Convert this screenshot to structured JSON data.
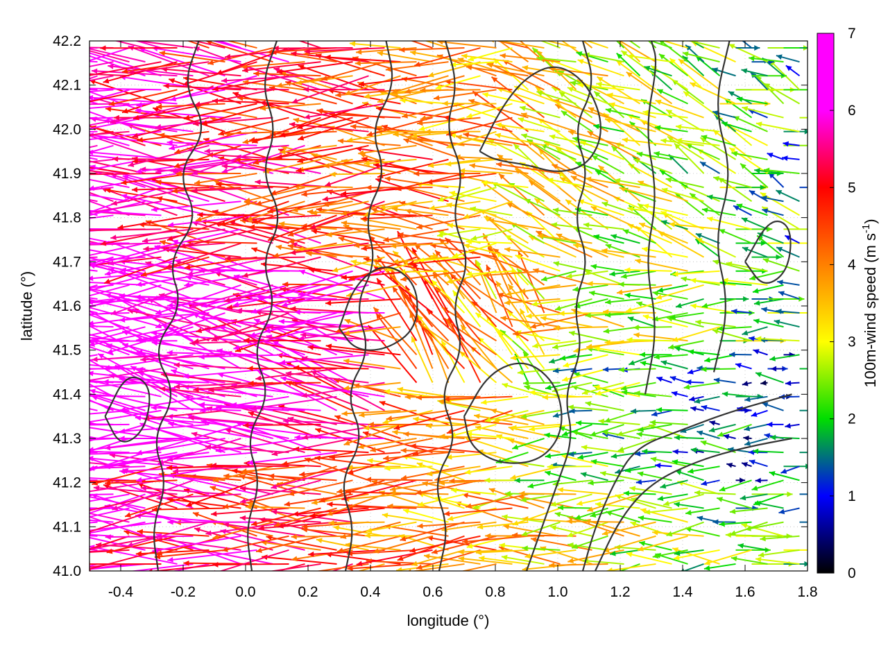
{
  "chart_data": {
    "type": "vector-field",
    "xlabel": "longitude (°)",
    "ylabel": "latitude (°)",
    "xlim": [
      -0.5,
      1.8
    ],
    "ylim": [
      41.0,
      42.2
    ],
    "xticks": [
      -0.4,
      -0.2,
      0.0,
      0.2,
      0.4,
      0.6,
      0.8,
      1.0,
      1.2,
      1.4,
      1.6,
      1.8
    ],
    "xtick_labels": [
      "-0.4",
      "-0.2",
      "0.0",
      "0.2",
      "0.4",
      "0.6",
      "0.8",
      "1.0",
      "1.2",
      "1.4",
      "1.6",
      "1.8"
    ],
    "yticks": [
      41.0,
      41.1,
      41.2,
      41.3,
      41.4,
      41.5,
      41.6,
      41.7,
      41.8,
      41.9,
      42.0,
      42.1,
      42.2
    ],
    "ytick_labels": [
      "41.0",
      "41.1",
      "41.2",
      "41.3",
      "41.4",
      "41.5",
      "41.6",
      "41.7",
      "41.8",
      "41.9",
      "42.0",
      "42.1",
      "42.2"
    ],
    "grid": true,
    "colorbar": {
      "label_main": "100m-wind speed (m s",
      "label_sup": "-1",
      "label_end": ")",
      "range": [
        0,
        7
      ],
      "ticks": [
        0,
        1,
        2,
        3,
        4,
        5,
        6,
        7
      ],
      "tick_labels": [
        "0",
        "1",
        "2",
        "3",
        "4",
        "5",
        "6",
        "7"
      ],
      "colors": [
        "#000000",
        "#0000ff",
        "#00dd00",
        "#ffff00",
        "#ff8000",
        "#ff0000",
        "#ff00ff"
      ]
    },
    "contour_color": "#333333",
    "contours": [
      {
        "level": "c1",
        "path": [
          [
            -0.28,
            41.0
          ],
          [
            -0.3,
            41.1
          ],
          [
            -0.25,
            41.2
          ],
          [
            -0.3,
            41.3
          ],
          [
            -0.22,
            41.4
          ],
          [
            -0.3,
            41.5
          ],
          [
            -0.2,
            41.6
          ],
          [
            -0.25,
            41.7
          ],
          [
            -0.15,
            41.8
          ],
          [
            -0.22,
            41.9
          ],
          [
            -0.12,
            42.0
          ],
          [
            -0.2,
            42.1
          ],
          [
            -0.15,
            42.2
          ]
        ]
      },
      {
        "level": "c2",
        "path": [
          [
            0.02,
            41.0
          ],
          [
            0.0,
            41.1
          ],
          [
            0.05,
            41.2
          ],
          [
            0.0,
            41.3
          ],
          [
            0.08,
            41.4
          ],
          [
            0.02,
            41.5
          ],
          [
            0.1,
            41.6
          ],
          [
            0.05,
            41.7
          ],
          [
            0.12,
            41.8
          ],
          [
            0.05,
            41.9
          ],
          [
            0.1,
            42.0
          ],
          [
            0.05,
            42.1
          ],
          [
            0.1,
            42.2
          ]
        ]
      },
      {
        "level": "c3",
        "path": [
          [
            0.32,
            41.0
          ],
          [
            0.35,
            41.1
          ],
          [
            0.3,
            41.2
          ],
          [
            0.38,
            41.3
          ],
          [
            0.32,
            41.4
          ],
          [
            0.4,
            41.5
          ],
          [
            0.35,
            41.6
          ],
          [
            0.42,
            41.7
          ],
          [
            0.38,
            41.8
          ],
          [
            0.45,
            41.9
          ],
          [
            0.4,
            42.0
          ],
          [
            0.48,
            42.1
          ],
          [
            0.45,
            42.2
          ]
        ]
      },
      {
        "level": "c4",
        "path": [
          [
            0.62,
            41.0
          ],
          [
            0.65,
            41.1
          ],
          [
            0.6,
            41.2
          ],
          [
            0.68,
            41.3
          ],
          [
            0.62,
            41.4
          ],
          [
            0.7,
            41.5
          ],
          [
            0.66,
            41.6
          ],
          [
            0.72,
            41.7
          ],
          [
            0.66,
            41.8
          ],
          [
            0.7,
            41.9
          ],
          [
            0.64,
            42.0
          ],
          [
            0.68,
            42.1
          ],
          [
            0.64,
            42.2
          ]
        ]
      },
      {
        "level": "c5",
        "path": [
          [
            0.9,
            41.0
          ],
          [
            0.95,
            41.1
          ],
          [
            1.0,
            41.2
          ],
          [
            1.05,
            41.3
          ],
          [
            1.02,
            41.4
          ],
          [
            1.08,
            41.5
          ],
          [
            1.05,
            41.6
          ],
          [
            1.1,
            41.7
          ],
          [
            1.05,
            41.8
          ],
          [
            1.1,
            41.9
          ],
          [
            1.05,
            42.0
          ],
          [
            1.12,
            42.1
          ],
          [
            1.08,
            42.2
          ]
        ]
      },
      {
        "level": "c6",
        "path": [
          [
            1.08,
            41.0
          ],
          [
            1.12,
            41.1
          ],
          [
            1.18,
            41.2
          ],
          [
            1.25,
            41.28
          ],
          [
            1.4,
            41.32
          ],
          [
            1.55,
            41.36
          ],
          [
            1.75,
            41.4
          ]
        ]
      },
      {
        "level": "c7",
        "path": [
          [
            1.12,
            41.0
          ],
          [
            1.2,
            41.12
          ],
          [
            1.3,
            41.2
          ],
          [
            1.45,
            41.25
          ],
          [
            1.6,
            41.28
          ],
          [
            1.75,
            41.3
          ]
        ]
      },
      {
        "level": "c8",
        "path": [
          [
            1.28,
            41.4
          ],
          [
            1.32,
            41.55
          ],
          [
            1.28,
            41.7
          ],
          [
            1.32,
            41.85
          ],
          [
            1.28,
            42.0
          ],
          [
            1.32,
            42.15
          ],
          [
            1.3,
            42.2
          ]
        ]
      },
      {
        "level": "c9",
        "path": [
          [
            1.5,
            41.45
          ],
          [
            1.55,
            41.6
          ],
          [
            1.5,
            41.75
          ],
          [
            1.56,
            41.9
          ],
          [
            1.5,
            42.05
          ],
          [
            1.55,
            42.2
          ]
        ]
      },
      {
        "level": "c10",
        "path": [
          [
            0.75,
            41.95
          ],
          [
            0.82,
            42.05
          ],
          [
            0.9,
            42.12
          ],
          [
            1.0,
            42.15
          ],
          [
            1.1,
            42.1
          ],
          [
            1.15,
            42.0
          ],
          [
            1.1,
            41.92
          ],
          [
            1.0,
            41.9
          ],
          [
            0.9,
            41.92
          ],
          [
            0.8,
            41.93
          ],
          [
            0.75,
            41.95
          ]
        ]
      },
      {
        "level": "c11",
        "path": [
          [
            0.7,
            41.35
          ],
          [
            0.78,
            41.45
          ],
          [
            0.9,
            41.48
          ],
          [
            1.0,
            41.42
          ],
          [
            1.02,
            41.32
          ],
          [
            0.95,
            41.25
          ],
          [
            0.82,
            41.24
          ],
          [
            0.72,
            41.28
          ],
          [
            0.7,
            41.35
          ]
        ]
      },
      {
        "level": "c12",
        "path": [
          [
            0.3,
            41.55
          ],
          [
            0.35,
            41.65
          ],
          [
            0.45,
            41.7
          ],
          [
            0.55,
            41.65
          ],
          [
            0.55,
            41.55
          ],
          [
            0.45,
            41.5
          ],
          [
            0.35,
            41.5
          ],
          [
            0.3,
            41.55
          ]
        ]
      },
      {
        "level": "c13",
        "path": [
          [
            -0.45,
            41.35
          ],
          [
            -0.38,
            41.45
          ],
          [
            -0.3,
            41.42
          ],
          [
            -0.32,
            41.32
          ],
          [
            -0.4,
            41.28
          ],
          [
            -0.45,
            41.35
          ]
        ]
      },
      {
        "level": "c14",
        "path": [
          [
            1.6,
            41.7
          ],
          [
            1.68,
            41.8
          ],
          [
            1.75,
            41.78
          ],
          [
            1.74,
            41.68
          ],
          [
            1.66,
            41.64
          ],
          [
            1.6,
            41.7
          ]
        ]
      }
    ]
  }
}
